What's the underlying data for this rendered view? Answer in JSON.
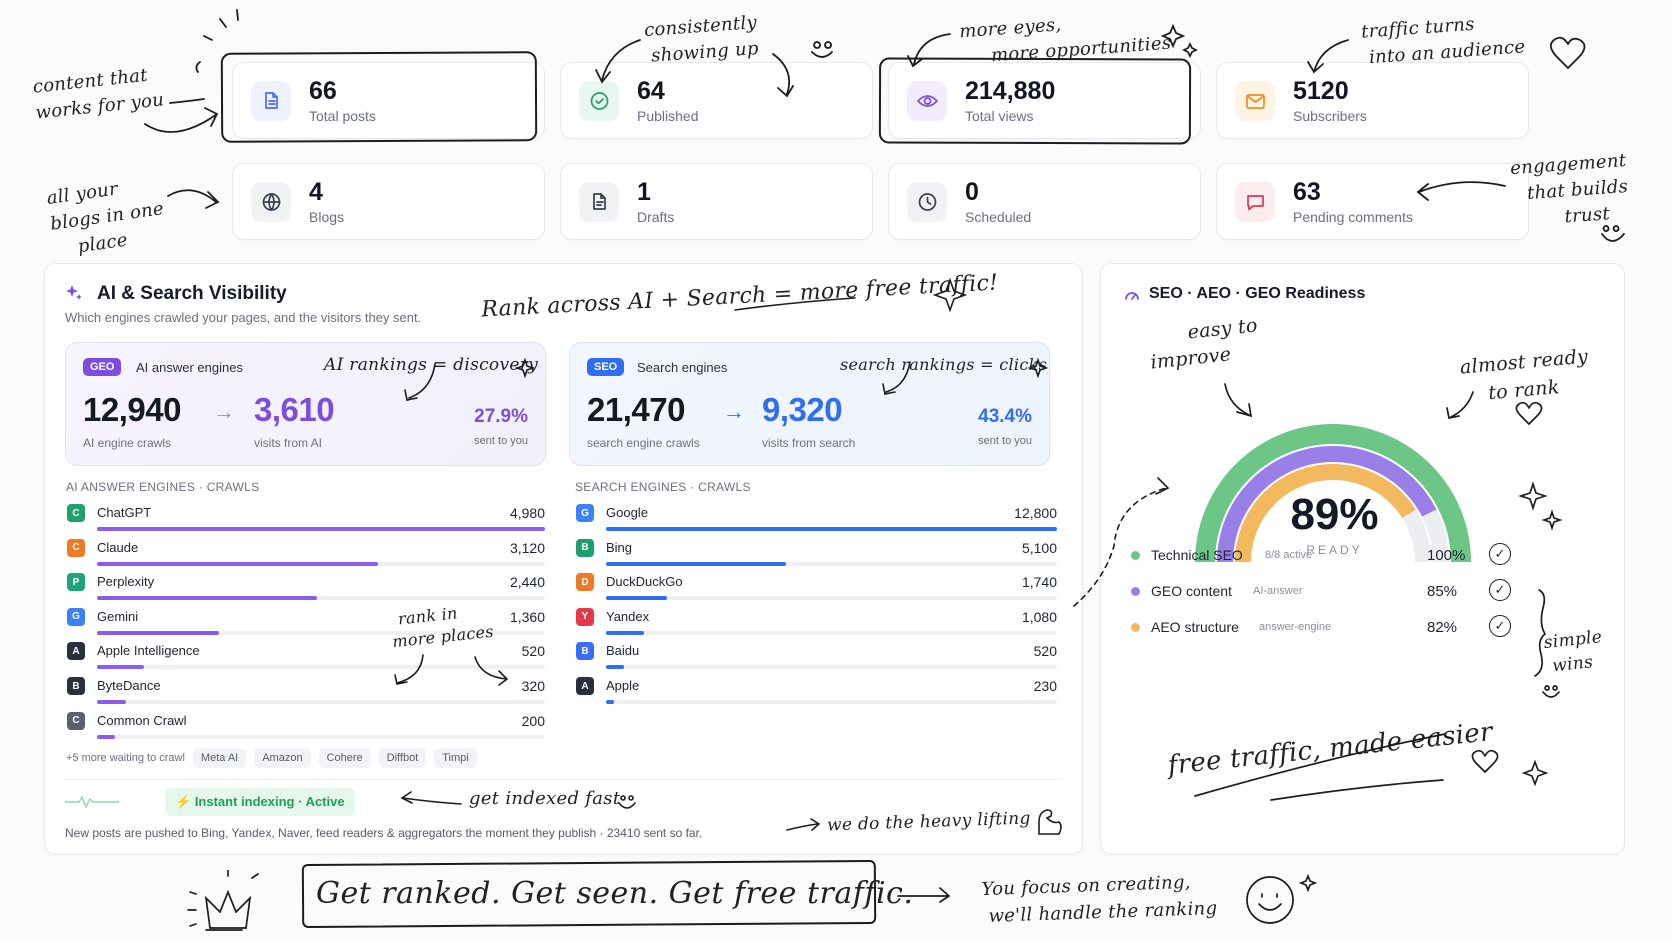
{
  "stats": [
    {
      "value": "66",
      "label": "Total posts",
      "icon": "document-icon",
      "color": "#4a6cf7",
      "bg": "#eef1fe"
    },
    {
      "value": "64",
      "label": "Published",
      "icon": "check-circle-icon",
      "color": "#22a06b",
      "bg": "#e8f7f0"
    },
    {
      "value": "214,880",
      "label": "Total views",
      "icon": "eye-icon",
      "color": "#7c4ddf",
      "bg": "#f2ecfd"
    },
    {
      "value": "5120",
      "label": "Subscribers",
      "icon": "mail-icon",
      "color": "#f08c1a",
      "bg": "#fff3e4"
    },
    {
      "value": "4",
      "label": "Blogs",
      "icon": "globe-icon",
      "color": "#3a3f4d",
      "bg": "#f1f2f5"
    },
    {
      "value": "1",
      "label": "Drafts",
      "icon": "draft-icon",
      "color": "#3a3f4d",
      "bg": "#f1f2f5"
    },
    {
      "value": "0",
      "label": "Scheduled",
      "icon": "clock-icon",
      "color": "#3a3f4d",
      "bg": "#f1f2f5"
    },
    {
      "value": "63",
      "label": "Pending comments",
      "icon": "comment-icon",
      "color": "#e0344a",
      "bg": "#fdecee"
    }
  ],
  "visibility": {
    "title": "AI & Search Visibility",
    "subtitle": "Which engines crawled your pages, and the visitors they sent.",
    "geo": {
      "pill": "GEO",
      "label": "AI answer engines",
      "note": "AI rankings = discovery",
      "crawls": "12,940",
      "crawls_label": "AI engine crawls",
      "visits": "3,610",
      "visits_label": "visits from AI",
      "pct": "27.9%",
      "pct_label": "sent to you"
    },
    "seo": {
      "pill": "SEO",
      "label": "Search engines",
      "note": "search rankings = clicks",
      "crawls": "21,470",
      "crawls_label": "search engine crawls",
      "visits": "9,320",
      "visits_label": "visits from search",
      "pct": "43.4%",
      "pct_label": "sent to you"
    },
    "ai_header": "AI ANSWER ENGINES · CRAWLS",
    "search_header": "SEARCH ENGINES · CRAWLS",
    "ai_engines": [
      {
        "badge": "C",
        "name": "ChatGPT",
        "value": 4980,
        "display": "4,980",
        "color": "#22a06b"
      },
      {
        "badge": "C",
        "name": "Claude",
        "value": 3120,
        "display": "3,120",
        "color": "#f07a24"
      },
      {
        "badge": "P",
        "name": "Perplexity",
        "value": 2440,
        "display": "2,440",
        "color": "#1fa37a"
      },
      {
        "badge": "G",
        "name": "Gemini",
        "value": 1360,
        "display": "1,360",
        "color": "#3b82f6"
      },
      {
        "badge": "A",
        "name": "Apple Intelligence",
        "value": 520,
        "display": "520",
        "color": "#2a2f3e"
      },
      {
        "badge": "B",
        "name": "ByteDance",
        "value": 320,
        "display": "320",
        "color": "#2a2f3e"
      },
      {
        "badge": "C",
        "name": "Common Crawl",
        "value": 200,
        "display": "200",
        "color": "#5b6070"
      }
    ],
    "search_engines": [
      {
        "badge": "G",
        "name": "Google",
        "value": 12800,
        "display": "12,800",
        "color": "#3b82f6"
      },
      {
        "badge": "B",
        "name": "Bing",
        "value": 5100,
        "display": "5,100",
        "color": "#1f9e6e"
      },
      {
        "badge": "D",
        "name": "DuckDuckGo",
        "value": 1740,
        "display": "1,740",
        "color": "#f07a24"
      },
      {
        "badge": "Y",
        "name": "Yandex",
        "value": 1080,
        "display": "1,080",
        "color": "#e5394a"
      },
      {
        "badge": "B",
        "name": "Baidu",
        "value": 520,
        "display": "520",
        "color": "#3b6cf7"
      },
      {
        "badge": "A",
        "name": "Apple",
        "value": 230,
        "display": "230",
        "color": "#2a2f3e"
      }
    ],
    "more_waiting": "+5 more waiting to crawl",
    "waiting_chips": [
      "Meta AI",
      "Amazon",
      "Cohere",
      "Diffbot",
      "Timpi"
    ],
    "indexing_badge": "Instant indexing · Active",
    "indexing_text": "New posts are pushed to Bing, Yandex, Naver, feed readers & aggregators the moment they publish · 23410 sent so far."
  },
  "readiness": {
    "title": "SEO · AEO · GEO Readiness",
    "score": "89%",
    "score_value": 89,
    "score_label": "READY",
    "items": [
      {
        "name": "Technical SEO",
        "sub": "8/8 active",
        "pct": "100%",
        "value": 100,
        "color": "#6cc685"
      },
      {
        "name": "GEO content",
        "sub": "AI-answer",
        "pct": "85%",
        "value": 85,
        "color": "#9a7fe8"
      },
      {
        "name": "AEO structure",
        "sub": "answer-engine",
        "pct": "82%",
        "value": 82,
        "color": "#f3b95f"
      }
    ]
  },
  "annotations": {
    "content": [
      "content that",
      "works for you"
    ],
    "consistent": [
      "consistently",
      "showing up"
    ],
    "eyes": [
      "more eyes,",
      "more opportunities"
    ],
    "traffic": [
      "traffic turns",
      "into an audience"
    ],
    "blogs": [
      "all your",
      "blogs in one",
      "place"
    ],
    "engagement": [
      "engagement",
      "that builds",
      "trust"
    ],
    "rank_across": "Rank across AI + Search = more free traffic!",
    "easy": [
      "easy to",
      "improve"
    ],
    "almost": [
      "almost ready",
      "to rank"
    ],
    "rank_places": [
      "rank in",
      "more places"
    ],
    "simple": [
      "simple",
      "wins"
    ],
    "free_traffic": "free traffic, made easier",
    "indexed": "get indexed fast",
    "heavy": "we do the heavy lifting",
    "slogan": "Get ranked. Get seen. Get free traffic.",
    "focus": [
      "You focus on creating,",
      "we'll handle the ranking"
    ]
  }
}
